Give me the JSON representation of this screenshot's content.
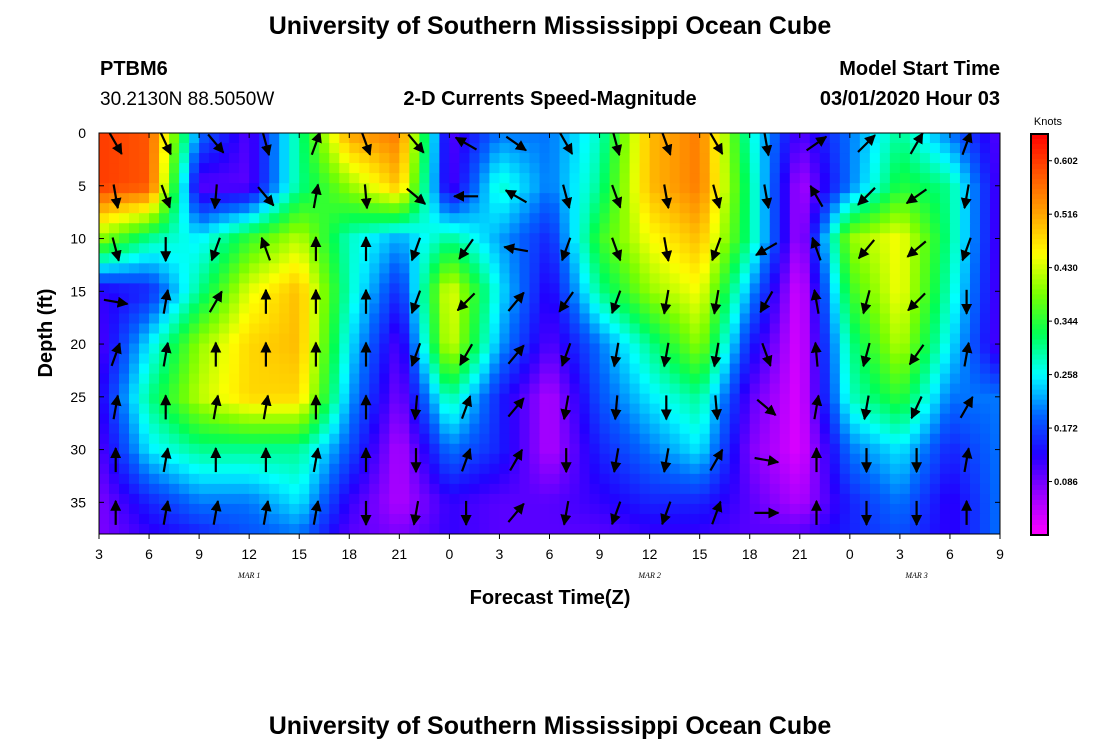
{
  "page": {
    "title": "University of Southern Mississippi Ocean Cube",
    "footer_title": "University of Southern Mississippi Ocean Cube"
  },
  "header": {
    "station": "PTBM6",
    "coords": "30.2130N 88.5050W",
    "plot_title": "2-D Currents Speed-Magnitude",
    "model_label": "Model Start Time",
    "model_time": "03/01/2020 Hour 03"
  },
  "chart_data": {
    "type": "heatmap",
    "title": "2-D Currents Speed-Magnitude",
    "xlabel": "Forecast Time(Z)",
    "ylabel": "Depth (ft)",
    "x_hours_from_start": [
      0,
      54
    ],
    "x_tick_labels": [
      "3",
      "6",
      "9",
      "12",
      "15",
      "18",
      "21",
      "0",
      "3",
      "6",
      "9",
      "12",
      "15",
      "18",
      "21",
      "0",
      "3",
      "6",
      "9"
    ],
    "date_labels": [
      "MAR 1",
      "MAR 2",
      "MAR 3"
    ],
    "date_label_hour": [
      9,
      33,
      49
    ],
    "ylim": [
      0,
      38
    ],
    "y_ticks": [
      0,
      5,
      10,
      15,
      20,
      25,
      30,
      35
    ],
    "y_inverted": true,
    "colorbar": {
      "unit": "Knots",
      "range": [
        0,
        0.645
      ],
      "tick_values": [
        0.602,
        0.516,
        0.43,
        0.344,
        0.258,
        0.172,
        0.086
      ],
      "tick_labels": [
        "0.602",
        "0.516",
        "0.430",
        "0.344",
        "0.258",
        "0.172",
        "0.086"
      ],
      "colors": [
        "#ff00ff",
        "#9a00ff",
        "#2200ff",
        "#0066ff",
        "#00ffff",
        "#00ff55",
        "#77ff00",
        "#ffff00",
        "#ffa500",
        "#ff5500",
        "#ff0000"
      ]
    },
    "speed_field_knots": {
      "rows_depth_ft": [
        0,
        5,
        10,
        15,
        20,
        25,
        30,
        35,
        38
      ],
      "cols_hour": [
        0,
        3,
        6,
        9,
        12,
        15,
        18,
        21,
        24,
        27,
        30,
        33,
        36,
        39,
        42,
        45,
        48,
        51,
        54
      ],
      "values": [
        [
          0.6,
          0.58,
          0.2,
          0.1,
          0.3,
          0.52,
          0.55,
          0.1,
          0.2,
          0.2,
          0.28,
          0.5,
          0.55,
          0.28,
          0.1,
          0.2,
          0.3,
          0.2,
          0.1
        ],
        [
          0.6,
          0.58,
          0.1,
          0.1,
          0.3,
          0.4,
          0.5,
          0.1,
          0.28,
          0.2,
          0.3,
          0.5,
          0.55,
          0.3,
          0.05,
          0.2,
          0.34,
          0.3,
          0.1
        ],
        [
          0.4,
          0.3,
          0.25,
          0.35,
          0.42,
          0.28,
          0.22,
          0.3,
          0.22,
          0.15,
          0.35,
          0.45,
          0.5,
          0.3,
          0.05,
          0.4,
          0.45,
          0.3,
          0.1
        ],
        [
          0.12,
          0.15,
          0.3,
          0.44,
          0.5,
          0.28,
          0.15,
          0.45,
          0.25,
          0.12,
          0.3,
          0.4,
          0.45,
          0.22,
          0.02,
          0.35,
          0.45,
          0.28,
          0.1
        ],
        [
          0.1,
          0.25,
          0.4,
          0.48,
          0.5,
          0.25,
          0.1,
          0.44,
          0.22,
          0.1,
          0.2,
          0.3,
          0.4,
          0.15,
          0.02,
          0.3,
          0.42,
          0.25,
          0.1
        ],
        [
          0.12,
          0.3,
          0.42,
          0.48,
          0.48,
          0.22,
          0.08,
          0.3,
          0.15,
          0.05,
          0.18,
          0.25,
          0.3,
          0.1,
          0.02,
          0.28,
          0.35,
          0.2,
          0.2
        ],
        [
          0.1,
          0.25,
          0.3,
          0.3,
          0.3,
          0.18,
          0.05,
          0.2,
          0.15,
          0.05,
          0.15,
          0.2,
          0.25,
          0.08,
          0.02,
          0.2,
          0.25,
          0.15,
          0.2
        ],
        [
          0.08,
          0.15,
          0.2,
          0.2,
          0.25,
          0.12,
          0.05,
          0.12,
          0.1,
          0.1,
          0.12,
          0.15,
          0.15,
          0.1,
          0.05,
          0.15,
          0.2,
          0.12,
          0.2
        ],
        [
          0.08,
          0.12,
          0.15,
          0.18,
          0.2,
          0.1,
          0.08,
          0.12,
          0.1,
          0.1,
          0.1,
          0.12,
          0.12,
          0.1,
          0.1,
          0.15,
          0.18,
          0.12,
          0.2
        ]
      ]
    },
    "vectors": {
      "rows_depth_ft": [
        1,
        6,
        11,
        16,
        21,
        26,
        31,
        36
      ],
      "cols_hour": [
        1,
        4,
        7,
        10,
        13,
        16,
        19,
        22,
        25,
        28,
        31,
        34,
        37,
        40,
        43,
        46,
        49,
        52
      ],
      "directions_deg_cw_from_up": [
        [
          150,
          155,
          140,
          165,
          20,
          160,
          140,
          300,
          125,
          150,
          165,
          160,
          150,
          170,
          55,
          45,
          30,
          20
        ],
        [
          170,
          160,
          185,
          140,
          10,
          175,
          130,
          270,
          300,
          165,
          160,
          170,
          165,
          170,
          330,
          225,
          235,
          190
        ],
        [
          165,
          180,
          200,
          340,
          0,
          0,
          200,
          215,
          280,
          200,
          160,
          170,
          200,
          240,
          340,
          220,
          230,
          200
        ],
        [
          100,
          10,
          30,
          0,
          0,
          0,
          200,
          225,
          40,
          215,
          200,
          190,
          190,
          210,
          350,
          195,
          225,
          180
        ],
        [
          20,
          10,
          0,
          0,
          0,
          0,
          200,
          210,
          40,
          200,
          190,
          190,
          190,
          160,
          355,
          195,
          215,
          10
        ],
        [
          10,
          0,
          10,
          10,
          0,
          0,
          185,
          20,
          40,
          190,
          185,
          180,
          175,
          130,
          10,
          190,
          205,
          30
        ],
        [
          0,
          10,
          0,
          0,
          10,
          0,
          180,
          20,
          30,
          180,
          190,
          190,
          30,
          100,
          0,
          180,
          180,
          10
        ],
        [
          0,
          10,
          10,
          10,
          10,
          180,
          190,
          180,
          40,
          190,
          200,
          200,
          20,
          90,
          0,
          180,
          180,
          0
        ]
      ]
    }
  }
}
